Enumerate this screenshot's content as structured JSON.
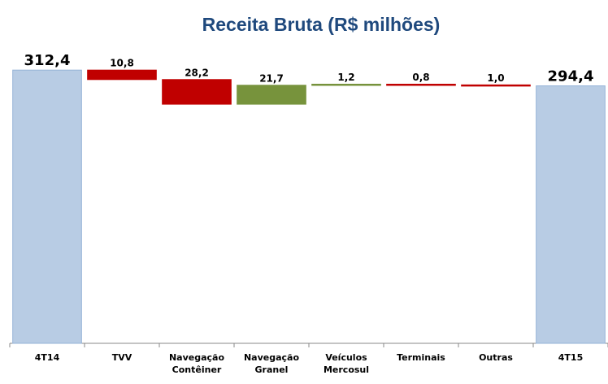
{
  "chart_data": {
    "type": "waterfall",
    "title": "Receita Bruta (R$ milhões)",
    "categories": [
      "4T14",
      "TVV",
      "Navegação Contêiner",
      "Navegação Granel",
      "Veículos Mercosul",
      "Terminais",
      "Outras",
      "4T15"
    ],
    "measure": [
      "absolute",
      "relative",
      "relative",
      "relative",
      "relative",
      "relative",
      "relative",
      "total"
    ],
    "values": [
      312.4,
      -10.8,
      -28.2,
      21.7,
      1.2,
      -0.8,
      -1.0,
      294.4
    ],
    "value_labels": [
      "312,4",
      "10,8",
      "28,2",
      "21,7",
      "1,2",
      "0,8",
      "1,0",
      "294,4"
    ],
    "colors": {
      "total": "#b8cce4",
      "decrease": "#c00000",
      "increase": "#77933c"
    },
    "ylim": [
      0,
      320
    ]
  }
}
